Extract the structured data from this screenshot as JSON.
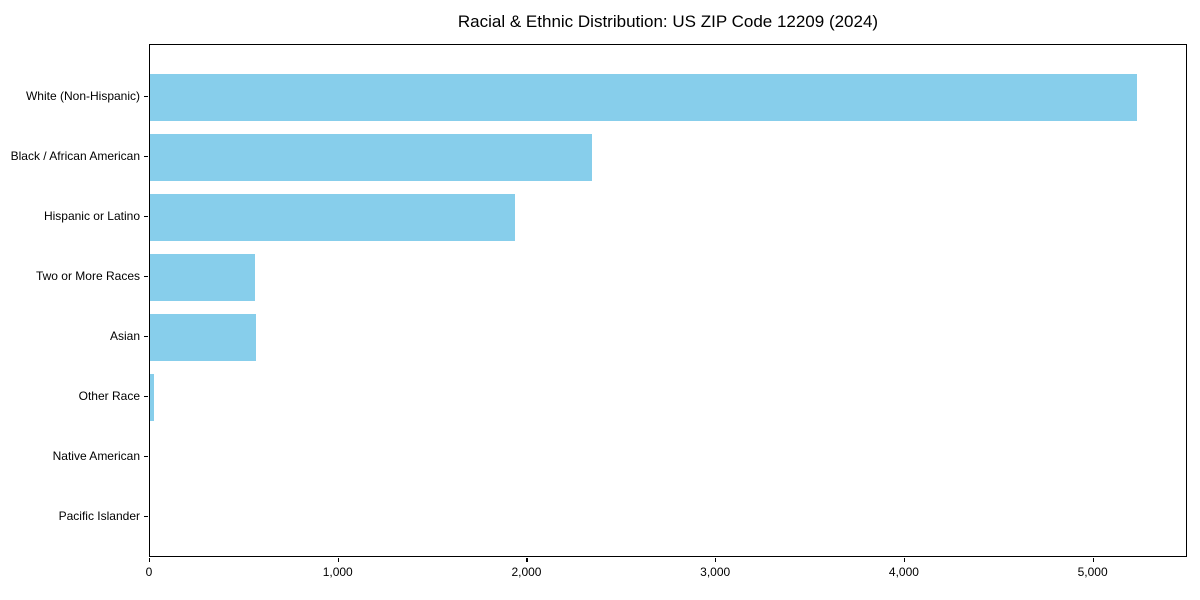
{
  "chart_data": {
    "type": "bar",
    "orientation": "horizontal",
    "title": "Racial & Ethnic Distribution: US ZIP Code 12209 (2024)",
    "categories": [
      "White (Non-Hispanic)",
      "Black / African American",
      "Hispanic or Latino",
      "Two or More Races",
      "Asian",
      "Other Race",
      "Native American",
      "Pacific Islander"
    ],
    "values": [
      5230,
      2340,
      1935,
      556,
      562,
      20,
      0,
      0
    ],
    "bar_color": "#87CEEB",
    "xlabel": "",
    "ylabel": "",
    "xlim": [
      0,
      5500
    ],
    "x_ticks": [
      0,
      1000,
      2000,
      3000,
      4000,
      5000
    ],
    "x_tick_labels": [
      "0",
      "1,000",
      "2,000",
      "3,000",
      "4,000",
      "5,000"
    ],
    "grid": false,
    "legend": "none",
    "background_color": "#ffffff",
    "frame_color": "#000000"
  }
}
